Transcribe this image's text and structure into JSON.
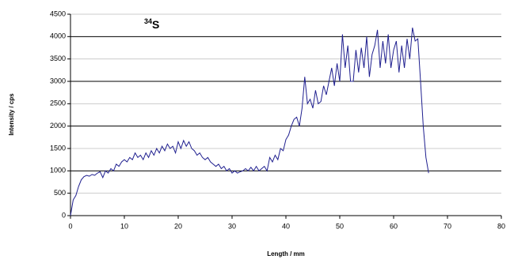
{
  "chart_data": {
    "type": "line",
    "title_superscript": "34",
    "title": "S",
    "x_label": "Length / mm",
    "y_label": "Intensity / cps",
    "xlim": [
      0,
      80
    ],
    "xticks": [
      0,
      10,
      20,
      30,
      40,
      50,
      60,
      70,
      80
    ],
    "ylim": [
      0,
      4500
    ],
    "yticks": [
      0,
      500,
      1000,
      1500,
      2000,
      2500,
      3000,
      3500,
      4000,
      4500
    ],
    "grid": true,
    "series": [
      {
        "color": "#1f1f8f",
        "x": [
          0,
          0.5,
          1,
          1.5,
          2,
          2.5,
          3,
          3.5,
          4,
          4.5,
          5,
          5.5,
          6,
          6.5,
          7,
          7.5,
          8,
          8.5,
          9,
          9.5,
          10,
          10.5,
          11,
          11.5,
          12,
          12.5,
          13,
          13.5,
          14,
          14.5,
          15,
          15.5,
          16,
          16.5,
          17,
          17.5,
          18,
          18.5,
          19,
          19.5,
          20,
          20.5,
          21,
          21.5,
          22,
          22.5,
          23,
          23.5,
          24,
          24.5,
          25,
          25.5,
          26,
          26.5,
          27,
          27.5,
          28,
          28.5,
          29,
          29.5,
          30,
          30.5,
          31,
          31.5,
          32,
          32.5,
          33,
          33.5,
          34,
          34.5,
          35,
          35.5,
          36,
          36.5,
          37,
          37.5,
          38,
          38.5,
          39,
          39.5,
          40,
          40.5,
          41,
          41.5,
          42,
          42.5,
          43,
          43.5,
          44,
          44.5,
          45,
          45.5,
          46,
          46.5,
          47,
          47.5,
          48,
          48.5,
          49,
          49.5,
          50,
          50.5,
          51,
          51.5,
          52,
          52.5,
          53,
          53.5,
          54,
          54.5,
          55,
          55.5,
          56,
          56.5,
          57,
          57.5,
          58,
          58.5,
          59,
          59.5,
          60,
          60.5,
          61,
          61.5,
          62,
          62.5,
          63,
          63.5,
          64,
          64.5,
          65,
          65.5,
          66,
          66.5
        ],
        "values": [
          0,
          350,
          450,
          650,
          800,
          870,
          900,
          880,
          920,
          900,
          950,
          980,
          850,
          1000,
          950,
          1050,
          1000,
          1150,
          1100,
          1200,
          1250,
          1200,
          1300,
          1250,
          1400,
          1300,
          1350,
          1250,
          1400,
          1300,
          1450,
          1350,
          1500,
          1400,
          1550,
          1450,
          1600,
          1500,
          1550,
          1400,
          1650,
          1500,
          1680,
          1550,
          1650,
          1500,
          1450,
          1350,
          1400,
          1300,
          1250,
          1300,
          1200,
          1150,
          1100,
          1150,
          1050,
          1100,
          1000,
          1050,
          950,
          1000,
          950,
          980,
          1000,
          1050,
          1000,
          1080,
          1000,
          1100,
          1000,
          1050,
          1100,
          1000,
          1300,
          1200,
          1350,
          1250,
          1500,
          1450,
          1700,
          1800,
          2000,
          2150,
          2200,
          2000,
          2400,
          3100,
          2500,
          2600,
          2400,
          2800,
          2500,
          2550,
          2900,
          2700,
          3000,
          3300,
          2900,
          3400,
          3000,
          4050,
          3300,
          3800,
          3000,
          3000,
          3700,
          3200,
          3750,
          3300,
          4000,
          3100,
          3600,
          3800,
          4150,
          3300,
          3900,
          3400,
          4050,
          3300,
          3700,
          3900,
          3200,
          3800,
          3300,
          3950,
          3500,
          4200,
          3900,
          3950,
          3000,
          2000,
          1300,
          950
        ]
      }
    ]
  }
}
